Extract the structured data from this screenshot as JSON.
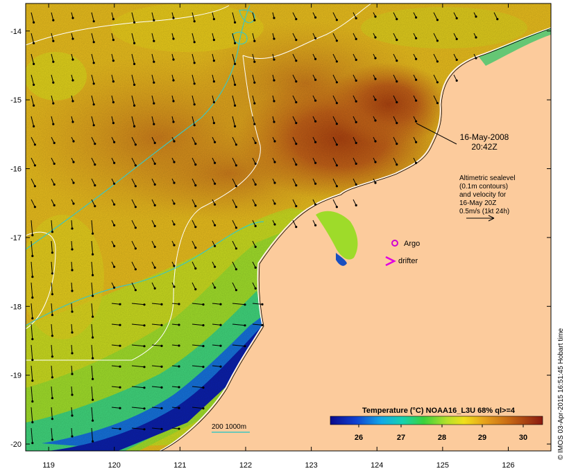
{
  "map": {
    "lon_ticks": [
      "119",
      "120",
      "121",
      "122",
      "123",
      "124",
      "125",
      "126"
    ],
    "lat_ticks": [
      "-14",
      "-15",
      "-16",
      "-17",
      "-18",
      "-19",
      "-20"
    ],
    "lon_range": [
      118.65,
      126.65
    ],
    "lat_range": [
      -13.6,
      -20.1
    ]
  },
  "annotations": {
    "date": "16-May-2008",
    "time": "20:42Z",
    "legend_lines": [
      "Altimetric sealevel",
      "(0.1m contours)",
      "and velocity for",
      "16-May 20Z",
      "0.5m/s (1kt 24h)"
    ],
    "argo_label": "Argo",
    "drifter_label": "drifter",
    "depth_label": "200  1000m"
  },
  "colorbar": {
    "title": "Temperature (°C) NOAA16_L3U 68% ql>=4",
    "ticks": [
      "26",
      "27",
      "28",
      "29",
      "30"
    ]
  },
  "credit": "© IMOS 03-Apr-2015 16:51:45 Hobart time",
  "colors": {
    "land": "#fccb9c",
    "sst_hot": "#b75212",
    "sst_warm": "#d6901c",
    "sst_mid": "#e8c019",
    "sst_cool": "#a6de2a",
    "sst_cold": "#0a18a5",
    "contour_white": "#ffffff",
    "bathymetry": "#3ec6c0",
    "argo": "#d000d0"
  }
}
